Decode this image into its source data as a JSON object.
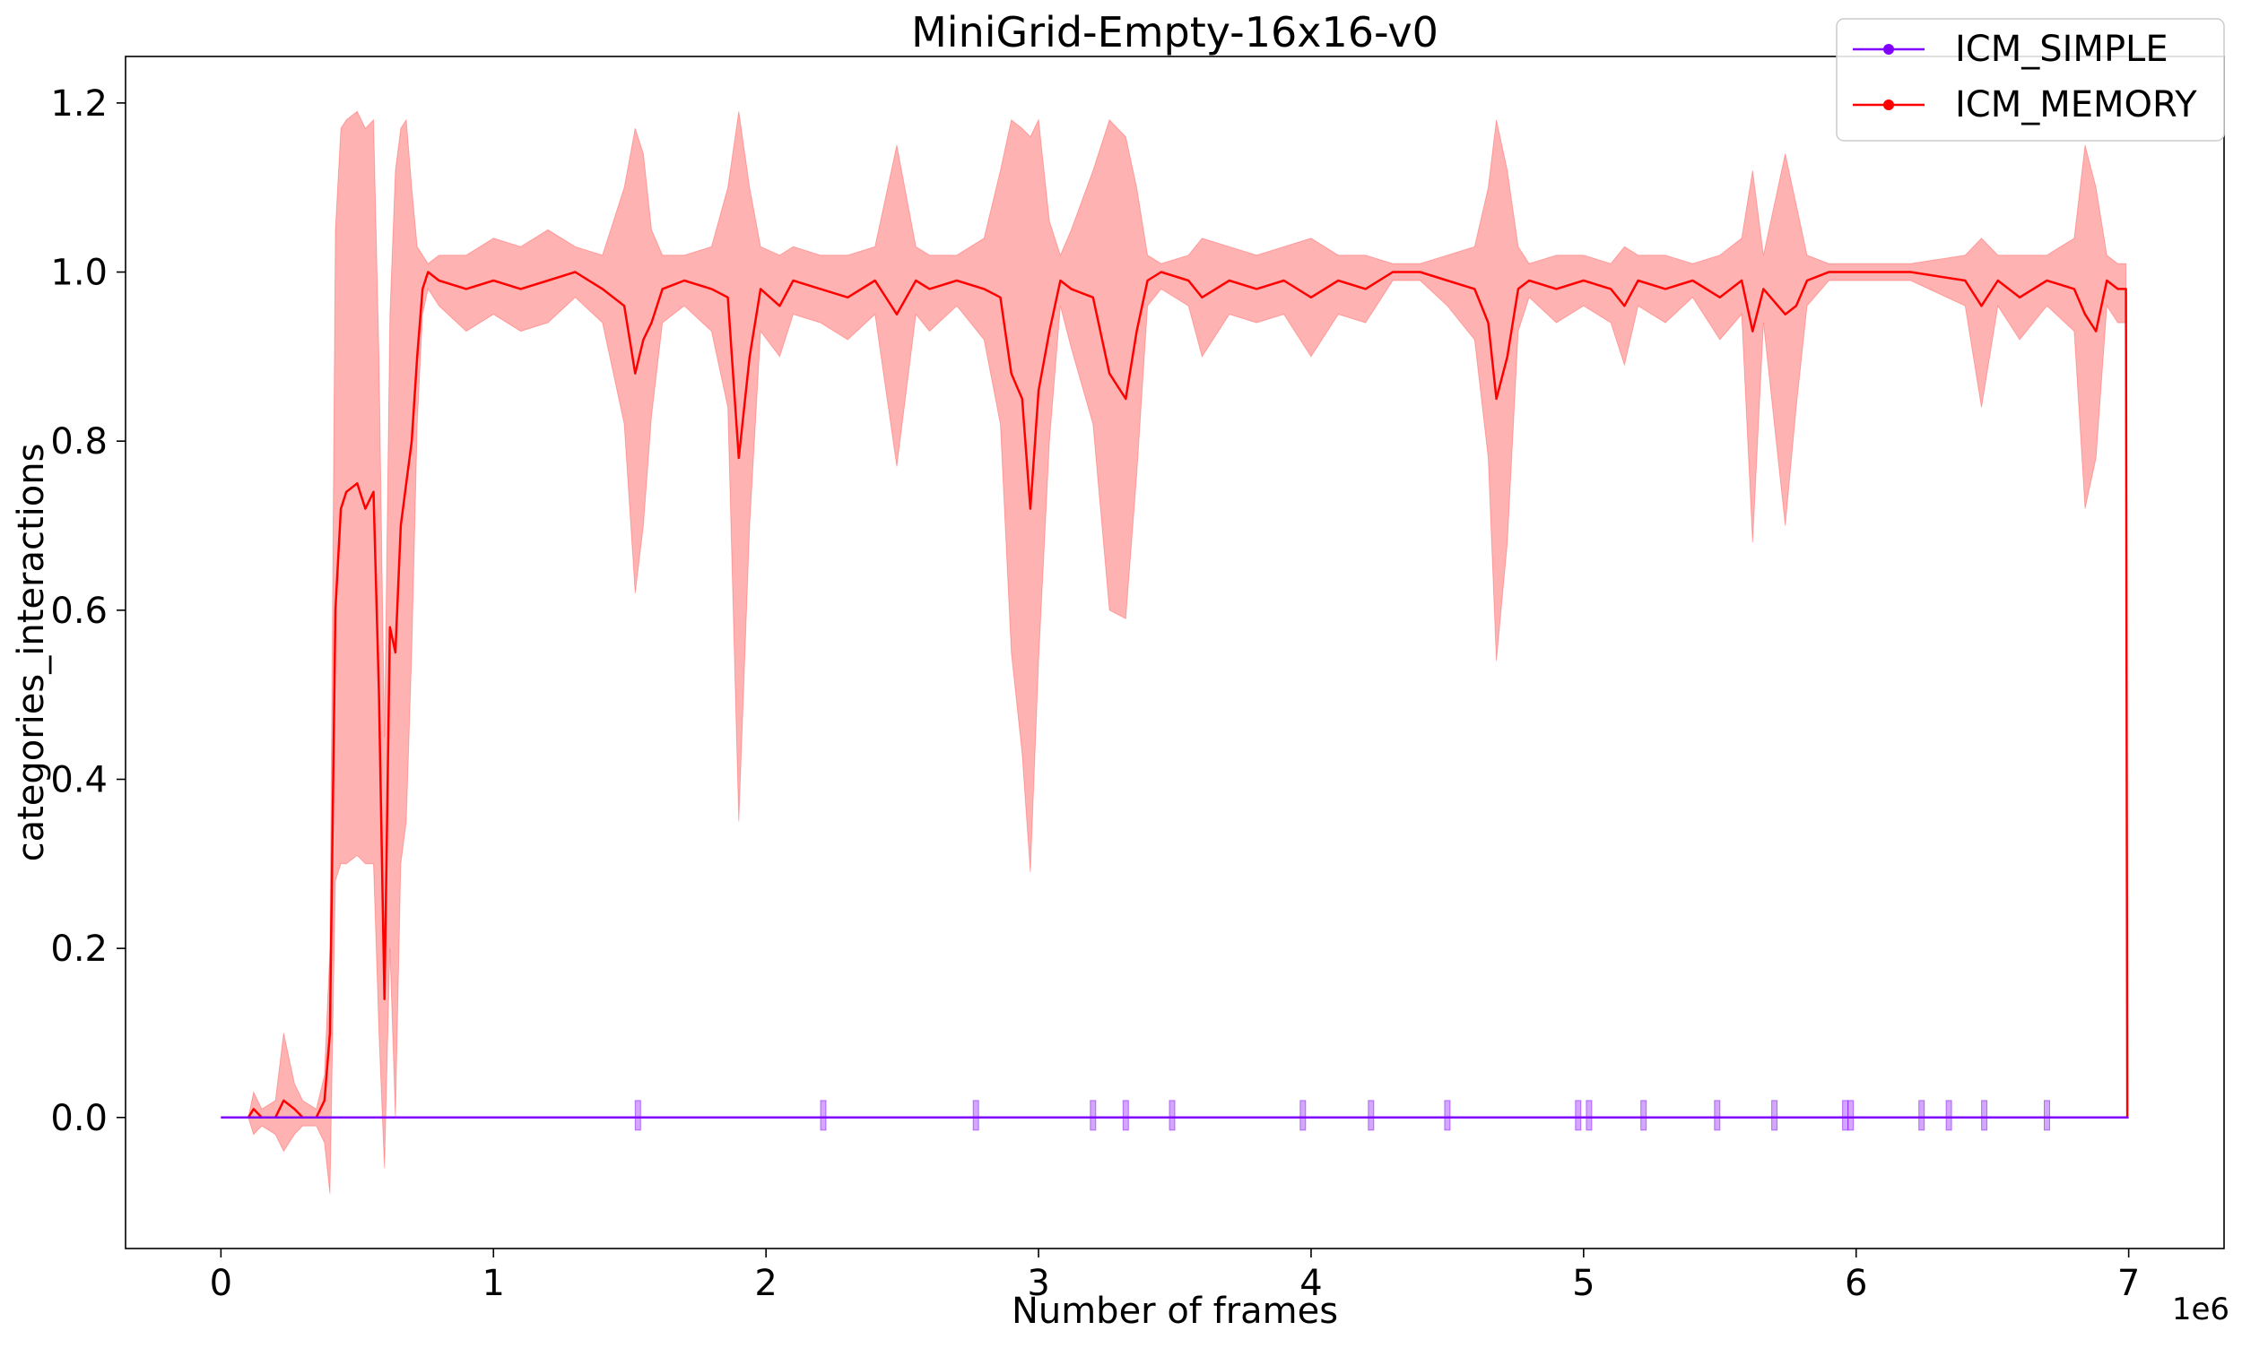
{
  "chart_data": {
    "type": "line",
    "title": "MiniGrid-Empty-16x16-v0",
    "xlabel": "Number of frames",
    "ylabel": "categories_interactions",
    "x_offset_label": "1e6",
    "xlim": [
      -0.35,
      7.35
    ],
    "ylim": [
      -0.155,
      1.255
    ],
    "x_ticks": [
      0,
      1,
      2,
      3,
      4,
      5,
      6,
      7
    ],
    "x_tick_labels": [
      "0",
      "1",
      "2",
      "3",
      "4",
      "5",
      "6",
      "7"
    ],
    "y_ticks": [
      0.0,
      0.2,
      0.4,
      0.6,
      0.8,
      1.0,
      1.2
    ],
    "y_tick_labels": [
      "0.0",
      "0.2",
      "0.4",
      "0.6",
      "0.8",
      "1.0",
      "1.2"
    ],
    "grid": false,
    "legend_position": "top-right",
    "series": [
      {
        "name": "ICM_SIMPLE",
        "color": "#8000ff",
        "band_color": "#8000ff",
        "x": [
          0,
          7.0
        ],
        "y": [
          0,
          0
        ],
        "spikes_x": [
          1.53,
          2.21,
          2.77,
          3.2,
          3.32,
          3.49,
          3.97,
          4.22,
          4.5,
          4.98,
          5.02,
          5.22,
          5.49,
          5.7,
          5.96,
          5.98,
          6.24,
          6.34,
          6.47,
          6.7
        ]
      },
      {
        "name": "ICM_MEMORY",
        "color": "#ff0000",
        "band_color": "#ff0000",
        "x": [
          0,
          0.1,
          0.12,
          0.15,
          0.2,
          0.23,
          0.27,
          0.3,
          0.35,
          0.38,
          0.4,
          0.42,
          0.44,
          0.46,
          0.5,
          0.53,
          0.56,
          0.58,
          0.6,
          0.62,
          0.64,
          0.66,
          0.68,
          0.7,
          0.72,
          0.74,
          0.76,
          0.8,
          0.9,
          1.0,
          1.1,
          1.2,
          1.3,
          1.4,
          1.48,
          1.52,
          1.55,
          1.58,
          1.62,
          1.7,
          1.8,
          1.86,
          1.9,
          1.94,
          1.98,
          2.05,
          2.1,
          2.2,
          2.3,
          2.4,
          2.48,
          2.55,
          2.6,
          2.7,
          2.8,
          2.86,
          2.9,
          2.94,
          2.97,
          3.0,
          3.04,
          3.08,
          3.12,
          3.2,
          3.26,
          3.32,
          3.36,
          3.4,
          3.45,
          3.55,
          3.6,
          3.7,
          3.8,
          3.9,
          4.0,
          4.1,
          4.2,
          4.3,
          4.4,
          4.5,
          4.6,
          4.65,
          4.68,
          4.72,
          4.76,
          4.8,
          4.9,
          5.0,
          5.1,
          5.15,
          5.2,
          5.3,
          5.4,
          5.5,
          5.58,
          5.62,
          5.66,
          5.74,
          5.78,
          5.82,
          5.9,
          6.0,
          6.2,
          6.4,
          6.46,
          6.52,
          6.6,
          6.7,
          6.8,
          6.84,
          6.88,
          6.92,
          6.96,
          6.99,
          6.995
        ],
        "y": [
          0,
          0,
          0.01,
          0.0,
          0.0,
          0.02,
          0.01,
          0.0,
          0.0,
          0.02,
          0.1,
          0.6,
          0.72,
          0.74,
          0.75,
          0.72,
          0.74,
          0.5,
          0.14,
          0.58,
          0.55,
          0.7,
          0.75,
          0.8,
          0.9,
          0.98,
          1.0,
          0.99,
          0.98,
          0.99,
          0.98,
          0.99,
          1.0,
          0.98,
          0.96,
          0.88,
          0.92,
          0.94,
          0.98,
          0.99,
          0.98,
          0.97,
          0.78,
          0.9,
          0.98,
          0.96,
          0.99,
          0.98,
          0.97,
          0.99,
          0.95,
          0.99,
          0.98,
          0.99,
          0.98,
          0.97,
          0.88,
          0.85,
          0.72,
          0.86,
          0.93,
          0.99,
          0.98,
          0.97,
          0.88,
          0.85,
          0.93,
          0.99,
          1.0,
          0.99,
          0.97,
          0.99,
          0.98,
          0.99,
          0.97,
          0.99,
          0.98,
          1.0,
          1.0,
          0.99,
          0.98,
          0.94,
          0.85,
          0.9,
          0.98,
          0.99,
          0.98,
          0.99,
          0.98,
          0.96,
          0.99,
          0.98,
          0.99,
          0.97,
          0.99,
          0.93,
          0.98,
          0.95,
          0.96,
          0.99,
          1.0,
          1.0,
          1.0,
          0.99,
          0.96,
          0.99,
          0.97,
          0.99,
          0.98,
          0.95,
          0.93,
          0.99,
          0.98,
          0.98,
          0.0
        ],
        "upper": [
          0,
          0,
          0.03,
          0.01,
          0.02,
          0.1,
          0.04,
          0.02,
          0.01,
          0.05,
          0.2,
          1.05,
          1.17,
          1.18,
          1.19,
          1.17,
          1.18,
          0.9,
          0.45,
          0.95,
          1.12,
          1.17,
          1.18,
          1.1,
          1.03,
          1.02,
          1.01,
          1.02,
          1.02,
          1.04,
          1.03,
          1.05,
          1.03,
          1.02,
          1.1,
          1.17,
          1.14,
          1.05,
          1.02,
          1.02,
          1.03,
          1.1,
          1.19,
          1.1,
          1.03,
          1.02,
          1.03,
          1.02,
          1.02,
          1.03,
          1.15,
          1.03,
          1.02,
          1.02,
          1.04,
          1.12,
          1.18,
          1.17,
          1.16,
          1.18,
          1.06,
          1.02,
          1.05,
          1.12,
          1.18,
          1.16,
          1.1,
          1.02,
          1.01,
          1.02,
          1.04,
          1.03,
          1.02,
          1.03,
          1.04,
          1.02,
          1.02,
          1.01,
          1.01,
          1.02,
          1.03,
          1.1,
          1.18,
          1.12,
          1.03,
          1.01,
          1.02,
          1.02,
          1.01,
          1.03,
          1.02,
          1.02,
          1.01,
          1.02,
          1.04,
          1.12,
          1.02,
          1.14,
          1.08,
          1.02,
          1.01,
          1.01,
          1.01,
          1.02,
          1.04,
          1.02,
          1.02,
          1.02,
          1.04,
          1.15,
          1.1,
          1.02,
          1.01,
          1.01,
          0.0
        ],
        "lower": [
          0,
          0,
          -0.02,
          -0.01,
          -0.02,
          -0.04,
          -0.02,
          -0.01,
          -0.01,
          -0.03,
          -0.09,
          0.28,
          0.3,
          0.3,
          0.31,
          0.3,
          0.3,
          0.1,
          -0.06,
          0.2,
          0.0,
          0.3,
          0.35,
          0.55,
          0.82,
          0.95,
          0.98,
          0.96,
          0.93,
          0.95,
          0.93,
          0.94,
          0.97,
          0.94,
          0.82,
          0.62,
          0.7,
          0.83,
          0.94,
          0.96,
          0.93,
          0.84,
          0.35,
          0.7,
          0.93,
          0.9,
          0.95,
          0.94,
          0.92,
          0.95,
          0.77,
          0.95,
          0.93,
          0.96,
          0.92,
          0.82,
          0.55,
          0.43,
          0.29,
          0.54,
          0.8,
          0.96,
          0.91,
          0.82,
          0.6,
          0.59,
          0.76,
          0.96,
          0.98,
          0.96,
          0.9,
          0.95,
          0.94,
          0.95,
          0.9,
          0.95,
          0.94,
          0.99,
          0.99,
          0.96,
          0.92,
          0.78,
          0.54,
          0.68,
          0.93,
          0.97,
          0.94,
          0.96,
          0.94,
          0.89,
          0.96,
          0.94,
          0.97,
          0.92,
          0.95,
          0.68,
          0.94,
          0.7,
          0.84,
          0.96,
          0.99,
          0.99,
          0.99,
          0.96,
          0.84,
          0.96,
          0.92,
          0.96,
          0.93,
          0.72,
          0.78,
          0.96,
          0.94,
          0.94,
          0.0
        ]
      }
    ]
  }
}
